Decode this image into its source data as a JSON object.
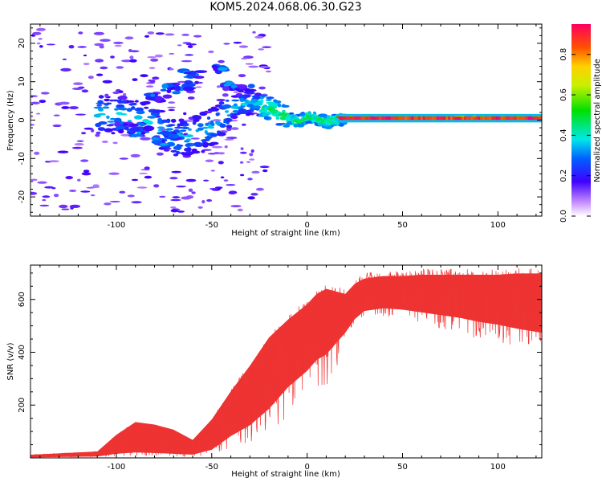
{
  "title": "KOM5.2024.068.06.30.G23",
  "chart_data": [
    {
      "type": "heatmap",
      "xlabel": "Height of straight line (km)",
      "ylabel": "Frequency (Hz)",
      "xlim": [
        -145,
        123
      ],
      "ylim": [
        -25,
        25
      ],
      "xticks": [
        -100,
        -50,
        0,
        50,
        100
      ],
      "yticks": [
        -20,
        -10,
        0,
        10,
        20
      ],
      "colorbar": {
        "label": "Normalized spectral amplitude",
        "range": [
          0.0,
          0.95
        ],
        "ticks": [
          0.0,
          0.2,
          0.4,
          0.6,
          0.8
        ]
      },
      "ridge": {
        "x": [
          -100,
          -90,
          -80,
          -70,
          -60,
          -50,
          -45,
          -40,
          -35,
          -30,
          -25,
          -20,
          -15,
          -10,
          -5,
          0,
          5,
          10,
          15,
          20,
          30,
          50,
          80,
          100,
          123
        ],
        "y": [
          1.5,
          0.5,
          -1,
          -5,
          -4,
          -2,
          0.5,
          3,
          4,
          4.5,
          4,
          3,
          2,
          0.5,
          -0.5,
          1,
          0.5,
          -0.5,
          0,
          0.5,
          0.5,
          0.5,
          0.5,
          0.5,
          0.5
        ]
      }
    },
    {
      "type": "line",
      "color": "#ee3333",
      "xlabel": "Height of straight line (km)",
      "ylabel": "SNR (v/v)",
      "xlim": [
        -145,
        123
      ],
      "ylim": [
        0,
        730
      ],
      "xticks": [
        -100,
        -50,
        0,
        50,
        100
      ],
      "yticks": [
        200,
        400,
        600
      ],
      "envelope": {
        "x": [
          -145,
          -110,
          -100,
          -90,
          -80,
          -70,
          -60,
          -50,
          -40,
          -30,
          -20,
          -10,
          0,
          5,
          10,
          15,
          20,
          25,
          30,
          40,
          50,
          60,
          70,
          80,
          90,
          100,
          110,
          123
        ],
        "lower": [
          2,
          5,
          15,
          20,
          18,
          15,
          12,
          30,
          80,
          120,
          180,
          260,
          320,
          360,
          380,
          420,
          460,
          510,
          540,
          550,
          545,
          535,
          525,
          515,
          500,
          490,
          475,
          460
        ],
        "upper": [
          12,
          25,
          90,
          140,
          130,
          110,
          70,
          150,
          260,
          360,
          470,
          540,
          600,
          640,
          660,
          650,
          640,
          680,
          700,
          710,
          710,
          715,
          715,
          715,
          715,
          715,
          720,
          720
        ],
        "low_min": [
          2,
          3,
          5,
          8,
          8,
          6,
          5,
          10,
          40,
          60,
          100,
          150,
          200,
          180,
          220,
          300,
          480,
          520,
          540,
          535,
          525,
          510,
          490,
          470,
          450,
          430,
          420,
          420
        ]
      }
    }
  ]
}
